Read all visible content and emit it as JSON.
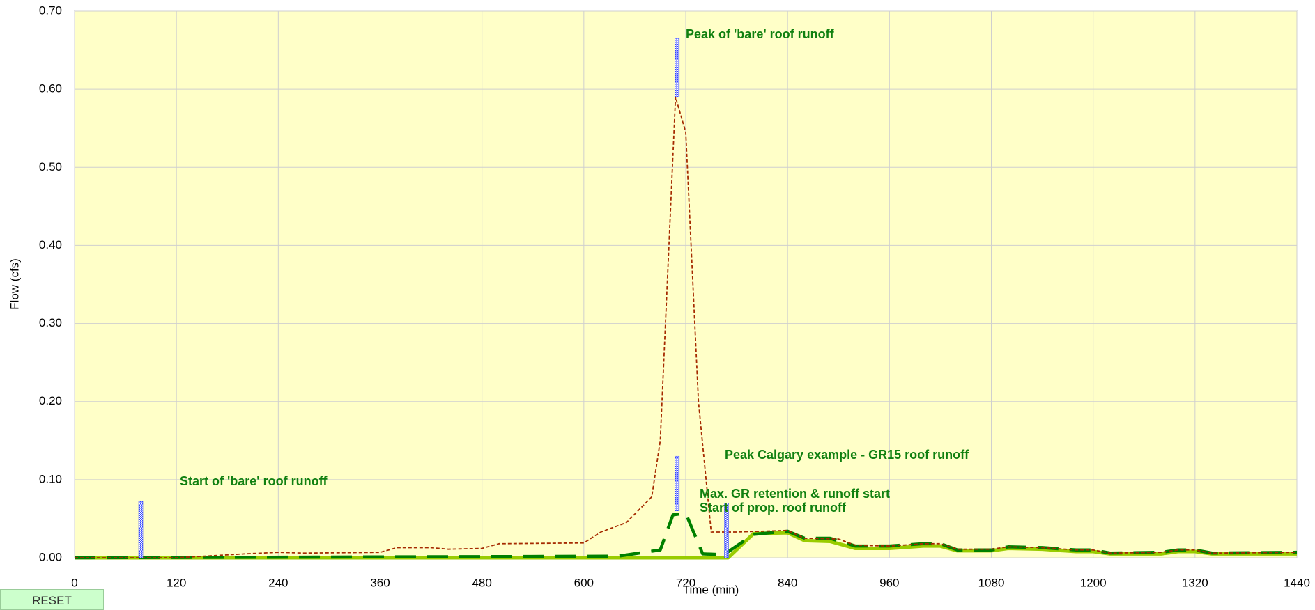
{
  "chart_data": {
    "type": "line",
    "xlabel": "Time (min)",
    "ylabel": "Flow (cfs)",
    "xlim": [
      0,
      1440
    ],
    "xticks": [
      0,
      120,
      240,
      360,
      480,
      600,
      720,
      840,
      960,
      1080,
      1200,
      1320,
      1440
    ],
    "ylim": [
      0,
      0.7
    ],
    "yticks": [
      {
        "value": 0,
        "label": "0.00"
      },
      {
        "value": 0.1,
        "label": "0.10"
      },
      {
        "value": 0.2,
        "label": "0.20"
      },
      {
        "value": 0.3,
        "label": "0.30"
      },
      {
        "value": 0.4,
        "label": "0.40"
      },
      {
        "value": 0.5,
        "label": "0.50"
      },
      {
        "value": 0.6,
        "label": "0.60"
      },
      {
        "value": 0.7,
        "label": "0.70"
      }
    ],
    "grid": true,
    "series": [
      {
        "color": "#99cc00",
        "style": "solid",
        "x": [
          0,
          770,
          800,
          840,
          860,
          890,
          920,
          960,
          1000,
          1020,
          1040,
          1080,
          1100,
          1140,
          1180,
          1200,
          1220,
          1280,
          1300,
          1320,
          1340,
          1440
        ],
        "values": [
          0,
          0,
          0.031,
          0.032,
          0.022,
          0.021,
          0.012,
          0.012,
          0.015,
          0.015,
          0.009,
          0.009,
          0.012,
          0.011,
          0.008,
          0.008,
          0.005,
          0.005,
          0.008,
          0.008,
          0.005,
          0.005
        ]
      },
      {
        "color": "#008000",
        "style": "longdash",
        "x": [
          0,
          640,
          690,
          705,
          720,
          740,
          765,
          800,
          840,
          860,
          890,
          920,
          960,
          1000,
          1020,
          1040,
          1080,
          1100,
          1140,
          1180,
          1200,
          1220,
          1280,
          1300,
          1320,
          1340,
          1440
        ],
        "values": [
          0,
          0.002,
          0.01,
          0.055,
          0.057,
          0.005,
          0.004,
          0.03,
          0.034,
          0.025,
          0.025,
          0.015,
          0.015,
          0.018,
          0.018,
          0.01,
          0.01,
          0.014,
          0.013,
          0.01,
          0.01,
          0.006,
          0.007,
          0.01,
          0.01,
          0.006,
          0.007
        ]
      },
      {
        "color": "#a52a00",
        "style": "dash",
        "x": [
          0,
          120,
          200,
          240,
          270,
          360,
          380,
          420,
          440,
          480,
          500,
          600,
          620,
          650,
          680,
          690,
          708,
          720,
          735,
          750,
          780,
          840,
          860,
          900,
          920,
          960,
          1000,
          1020,
          1040,
          1080,
          1100,
          1140,
          1180,
          1200,
          1220,
          1280,
          1300,
          1320,
          1340,
          1440
        ],
        "values": [
          0,
          0,
          0.005,
          0.007,
          0.006,
          0.007,
          0.013,
          0.013,
          0.011,
          0.012,
          0.018,
          0.019,
          0.033,
          0.045,
          0.078,
          0.15,
          0.59,
          0.545,
          0.2,
          0.033,
          0.033,
          0.035,
          0.025,
          0.024,
          0.016,
          0.015,
          0.018,
          0.018,
          0.011,
          0.011,
          0.014,
          0.013,
          0.01,
          0.01,
          0.006,
          0.007,
          0.01,
          0.01,
          0.006,
          0.007
        ]
      }
    ],
    "markers": {
      "color": "#3344ff",
      "x": [
        78,
        710,
        710,
        768
      ],
      "low": [
        0,
        0.59,
        0.06,
        0
      ],
      "high": [
        0.072,
        0.665,
        0.13,
        0.07
      ]
    },
    "annotations": [
      "Peak of 'bare' roof runoff",
      "Start of 'bare' roof runoff",
      "Peak Calgary example - GR15 roof runoff",
      "Max. GR retention & runoff start",
      "Start of prop. roof runoff"
    ]
  },
  "controls": {
    "reset": "RESET"
  }
}
